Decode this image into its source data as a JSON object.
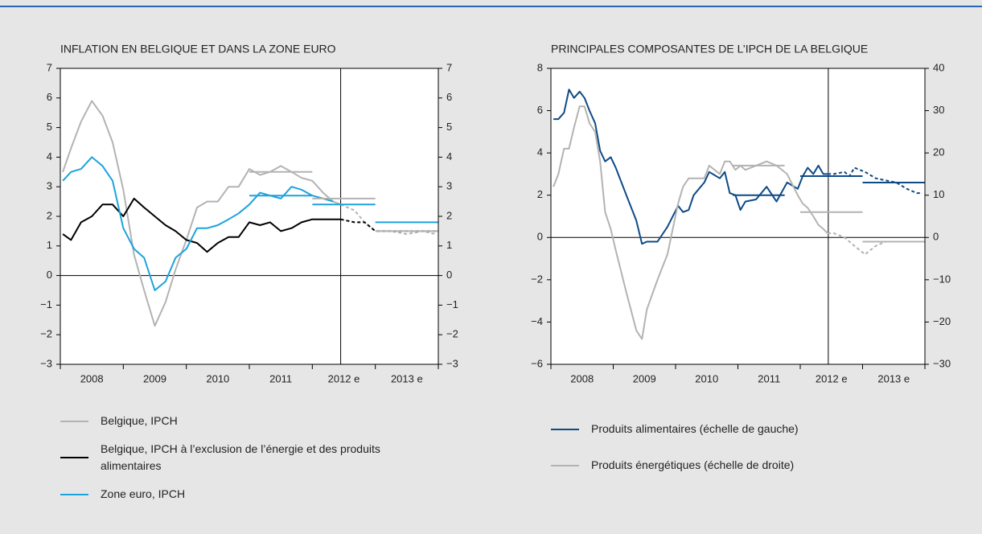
{
  "chart_data": [
    {
      "type": "line",
      "title": "INFLATION EN BELGIQUE ET DANS LA ZONE EURO",
      "xlim": [
        2008,
        2014
      ],
      "xticks": [
        {
          "value": 2008.5,
          "label": "2008"
        },
        {
          "value": 2009.5,
          "label": "2009"
        },
        {
          "value": 2010.5,
          "label": "2010"
        },
        {
          "value": 2011.5,
          "label": "2011"
        },
        {
          "value": 2012.5,
          "label": "2012 e"
        },
        {
          "value": 2013.5,
          "label": "2013 e"
        }
      ],
      "ylim": [
        -3,
        7
      ],
      "yticks": [
        {
          "value": -3,
          "label": "−3"
        },
        {
          "value": -2,
          "label": "−2"
        },
        {
          "value": -1,
          "label": "−1"
        },
        0,
        1,
        2,
        3,
        4,
        5,
        6,
        7
      ],
      "y2lim": [
        -3,
        7
      ],
      "y2ticks": [
        {
          "value": -3,
          "label": "−3"
        },
        {
          "value": -2,
          "label": "−2"
        },
        {
          "value": -1,
          "label": "−1"
        },
        0,
        1,
        2,
        3,
        4,
        5,
        6,
        7
      ],
      "projection_start": 2012.45,
      "series": [
        {
          "name": "Belgique, IPCH",
          "color": "#b3b3b3",
          "x": [
            2008.04,
            2008.17,
            2008.33,
            2008.5,
            2008.67,
            2008.83,
            2009.0,
            2009.17,
            2009.33,
            2009.5,
            2009.67,
            2009.83,
            2010.0,
            2010.17,
            2010.33,
            2010.5,
            2010.67,
            2010.83,
            2011.0,
            2011.17,
            2011.33,
            2011.5,
            2011.67,
            2011.83,
            2012.0,
            2012.17,
            2012.33,
            2012.45,
            2012.67,
            2012.83,
            2013.0,
            2013.25,
            2013.5,
            2013.75,
            2013.96
          ],
          "values": [
            3.5,
            4.3,
            5.2,
            5.9,
            5.4,
            4.5,
            2.9,
            0.7,
            -0.5,
            -1.7,
            -0.9,
            0.2,
            1.2,
            2.3,
            2.5,
            2.5,
            3.0,
            3.0,
            3.6,
            3.4,
            3.5,
            3.7,
            3.5,
            3.3,
            3.2,
            2.8,
            2.5,
            2.4,
            2.2,
            1.8,
            1.5,
            1.5,
            1.4,
            1.5,
            1.4
          ]
        },
        {
          "name": "Belgique, IPCH à l’exclusion de l’énergie et des produits alimentaires",
          "color": "#000000",
          "x": [
            2008.04,
            2008.17,
            2008.33,
            2008.5,
            2008.67,
            2008.83,
            2009.0,
            2009.17,
            2009.33,
            2009.5,
            2009.67,
            2009.83,
            2010.0,
            2010.17,
            2010.33,
            2010.5,
            2010.67,
            2010.83,
            2011.0,
            2011.17,
            2011.33,
            2011.5,
            2011.67,
            2011.83,
            2012.0,
            2012.17,
            2012.33,
            2012.45,
            2012.67,
            2012.83,
            2013.0,
            2013.25,
            2013.5,
            2013.75,
            2013.96
          ],
          "values": [
            1.4,
            1.2,
            1.8,
            2.0,
            2.4,
            2.4,
            2.0,
            2.6,
            2.3,
            2.0,
            1.7,
            1.5,
            1.2,
            1.1,
            0.8,
            1.1,
            1.3,
            1.3,
            1.8,
            1.7,
            1.8,
            1.5,
            1.6,
            1.8,
            1.9,
            1.9,
            1.9,
            1.9,
            1.8,
            1.8,
            1.5,
            1.5,
            1.5,
            1.5,
            1.5
          ]
        },
        {
          "name": "Zone euro, IPCH",
          "color": "#1ba3dc",
          "x": [
            2008.04,
            2008.17,
            2008.33,
            2008.5,
            2008.67,
            2008.83,
            2009.0,
            2009.17,
            2009.33,
            2009.5,
            2009.67,
            2009.83,
            2010.0,
            2010.17,
            2010.33,
            2010.5,
            2010.67,
            2010.83,
            2011.0,
            2011.17,
            2011.33,
            2011.5,
            2011.67,
            2011.83,
            2012.0,
            2012.17,
            2012.33
          ],
          "values": [
            3.2,
            3.5,
            3.6,
            4.0,
            3.7,
            3.2,
            1.6,
            0.9,
            0.6,
            -0.5,
            -0.2,
            0.6,
            0.9,
            1.6,
            1.6,
            1.7,
            1.9,
            2.1,
            2.4,
            2.8,
            2.7,
            2.6,
            3.0,
            2.9,
            2.7,
            2.6,
            2.5
          ]
        }
      ],
      "averages": [
        {
          "series": 0,
          "x": [
            2011,
            2012
          ],
          "value": 3.5
        },
        {
          "series": 2,
          "x": [
            2011,
            2012
          ],
          "value": 2.7
        },
        {
          "series": 0,
          "x": [
            2012,
            2013
          ],
          "value": 2.6
        },
        {
          "series": 2,
          "x": [
            2012,
            2013
          ],
          "value": 2.4
        },
        {
          "series": 2,
          "x": [
            2013,
            2014
          ],
          "value": 1.8
        },
        {
          "series": 0,
          "x": [
            2013,
            2014
          ],
          "value": 1.5
        }
      ]
    },
    {
      "type": "line",
      "title": "PRINCIPALES COMPOSANTES DE L’IPCH DE LA BELGIQUE",
      "xlim": [
        2008,
        2014
      ],
      "xticks": [
        {
          "value": 2008.5,
          "label": "2008"
        },
        {
          "value": 2009.5,
          "label": "2009"
        },
        {
          "value": 2010.5,
          "label": "2010"
        },
        {
          "value": 2011.5,
          "label": "2011"
        },
        {
          "value": 2012.5,
          "label": "2012 e"
        },
        {
          "value": 2013.5,
          "label": "2013 e"
        }
      ],
      "ylim": [
        -6,
        8
      ],
      "yticks": [
        {
          "value": -6,
          "label": "−6"
        },
        {
          "value": -4,
          "label": "−4"
        },
        {
          "value": -2,
          "label": "−2"
        },
        0,
        2,
        4,
        6,
        8
      ],
      "y2lim": [
        -30,
        40
      ],
      "y2ticks": [
        {
          "value": -30,
          "label": "−30"
        },
        {
          "value": -20,
          "label": "−20"
        },
        {
          "value": -10,
          "label": "−10"
        },
        0,
        10,
        20,
        30,
        40
      ],
      "projection_start": 2012.45,
      "series": [
        {
          "name": "Produits alimentaires (échelle de gauche)",
          "color": "#0d4a86",
          "x": [
            2008.04,
            2008.12,
            2008.21,
            2008.29,
            2008.37,
            2008.46,
            2008.54,
            2008.62,
            2008.71,
            2008.79,
            2008.87,
            2008.96,
            2009.04,
            2009.21,
            2009.37,
            2009.46,
            2009.54,
            2009.71,
            2009.87,
            2010.04,
            2010.12,
            2010.21,
            2010.29,
            2010.46,
            2010.54,
            2010.71,
            2010.79,
            2010.87,
            2010.96,
            2011.04,
            2011.12,
            2011.29,
            2011.46,
            2011.62,
            2011.79,
            2011.96,
            2012.04,
            2012.12,
            2012.21,
            2012.29,
            2012.37,
            2012.44,
            2012.54,
            2012.71,
            2012.79,
            2012.87,
            2013.04,
            2013.21,
            2013.37,
            2013.54,
            2013.71,
            2013.87,
            2013.96
          ],
          "values": [
            5.6,
            5.6,
            5.9,
            7.0,
            6.6,
            6.9,
            6.6,
            6.0,
            5.4,
            4.1,
            3.6,
            3.8,
            3.3,
            2.0,
            0.8,
            -0.3,
            -0.2,
            -0.2,
            0.5,
            1.5,
            1.2,
            1.3,
            2.0,
            2.6,
            3.1,
            2.8,
            3.1,
            2.1,
            2.0,
            1.3,
            1.7,
            1.8,
            2.4,
            1.7,
            2.6,
            2.3,
            2.9,
            3.3,
            3.0,
            3.4,
            3.0,
            3.0,
            3.0,
            3.1,
            2.9,
            3.3,
            3.1,
            2.8,
            2.7,
            2.6,
            2.3,
            2.1,
            2.1
          ]
        },
        {
          "name": "Produits énergétiques (échelle de droite)",
          "color": "#b3b3b3",
          "axis": "y2",
          "x": [
            2008.04,
            2008.12,
            2008.21,
            2008.29,
            2008.37,
            2008.46,
            2008.54,
            2008.62,
            2008.71,
            2008.79,
            2008.87,
            2008.96,
            2009.04,
            2009.21,
            2009.37,
            2009.46,
            2009.54,
            2009.71,
            2009.87,
            2010.04,
            2010.12,
            2010.21,
            2010.29,
            2010.46,
            2010.54,
            2010.71,
            2010.79,
            2010.87,
            2010.96,
            2011.04,
            2011.12,
            2011.29,
            2011.46,
            2011.62,
            2011.79,
            2011.96,
            2012.04,
            2012.12,
            2012.21,
            2012.29,
            2012.37,
            2012.44,
            2012.54,
            2012.71,
            2012.79,
            2012.87,
            2013.04,
            2013.21,
            2013.37,
            2013.54,
            2013.71,
            2013.87,
            2013.96
          ],
          "values": [
            12,
            15,
            21,
            21,
            26,
            31,
            31,
            27,
            25,
            18,
            6,
            2,
            -3,
            -13,
            -22,
            -24,
            -17,
            -10,
            -4,
            8,
            12,
            14,
            14,
            14,
            17,
            15,
            18,
            18,
            16,
            17,
            16,
            17,
            18,
            17,
            15,
            10,
            8,
            7,
            5,
            3,
            2,
            1,
            1,
            0,
            -1,
            -2,
            -4,
            -2,
            -1,
            -1,
            -1,
            -1,
            -1
          ]
        }
      ],
      "averages": [
        {
          "series": 0,
          "x": [
            2010.92,
            2011.75
          ],
          "value": 2.0
        },
        {
          "series": 1,
          "x": [
            2010.92,
            2011.75
          ],
          "value": 17
        },
        {
          "series": 0,
          "x": [
            2012,
            2013
          ],
          "value": 2.9
        },
        {
          "series": 1,
          "x": [
            2012,
            2013
          ],
          "value": 6
        },
        {
          "series": 0,
          "x": [
            2013,
            2014
          ],
          "value": 2.6
        },
        {
          "series": 1,
          "x": [
            2013,
            2014
          ],
          "value": -1
        }
      ]
    }
  ]
}
